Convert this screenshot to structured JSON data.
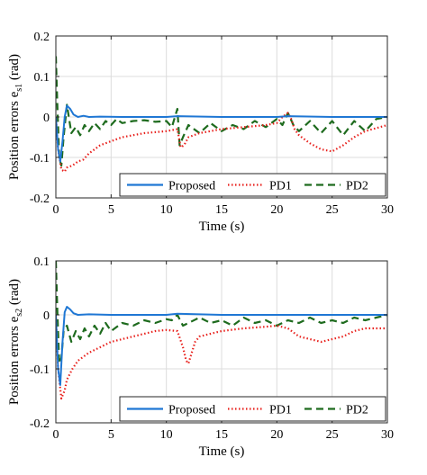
{
  "chart_data": [
    {
      "type": "line",
      "xlabel": "Time (s)",
      "ylabel": {
        "main": "Position errors e",
        "sub": "s1",
        "unit": "(rad)"
      },
      "xlim": [
        0,
        30
      ],
      "ylim": [
        -0.2,
        0.2
      ],
      "xticks": [
        0,
        5,
        10,
        15,
        20,
        25,
        30
      ],
      "yticks": [
        -0.2,
        -0.1,
        0,
        0.1,
        0.2
      ],
      "xtick_labels": [
        "0",
        "5",
        "10",
        "15",
        "20",
        "25",
        "30"
      ],
      "ytick_labels": [
        "-0.2",
        "-0.1",
        "0",
        "0.1",
        "0.2"
      ],
      "grid": true,
      "legend_position": "bottom-right",
      "series": [
        {
          "name": "Proposed",
          "color": "#1f77d4",
          "style": "solid",
          "x": [
            0,
            0.2,
            0.4,
            0.6,
            0.8,
            1.0,
            1.3,
            1.6,
            2.0,
            2.5,
            3.0,
            4.0,
            6.0,
            10.0,
            11.0,
            15.0,
            20.0,
            21.0,
            25.0,
            30.0
          ],
          "y": [
            0.0,
            -0.08,
            -0.11,
            -0.06,
            0.0,
            0.028,
            0.02,
            0.006,
            0.0,
            0.003,
            0.0,
            0.001,
            0.0,
            0.0,
            0.002,
            0.0,
            0.0,
            0.002,
            0.0,
            0.0
          ]
        },
        {
          "name": "PD1",
          "color": "#e8201c",
          "style": "dotted",
          "x": [
            0,
            0.2,
            0.5,
            0.8,
            1.0,
            1.5,
            2.0,
            2.5,
            3.0,
            4.0,
            5.0,
            6.0,
            8.0,
            10.0,
            11.0,
            11.3,
            11.6,
            12.0,
            13.0,
            15.0,
            17.0,
            19.0,
            20.0,
            20.5,
            21.0,
            21.3,
            21.6,
            22.0,
            23.0,
            24.0,
            25.0,
            26.0,
            27.0,
            28.0,
            30.0
          ],
          "y": [
            0.0,
            -0.08,
            -0.13,
            -0.135,
            -0.125,
            -0.12,
            -0.11,
            -0.105,
            -0.09,
            -0.07,
            -0.06,
            -0.05,
            -0.04,
            -0.035,
            -0.03,
            -0.075,
            -0.07,
            -0.05,
            -0.04,
            -0.03,
            -0.025,
            -0.02,
            -0.015,
            0.0,
            0.01,
            -0.005,
            -0.03,
            -0.045,
            -0.065,
            -0.08,
            -0.085,
            -0.07,
            -0.05,
            -0.035,
            -0.02
          ]
        },
        {
          "name": "PD2",
          "color": "#1e6b1e",
          "style": "dashed",
          "x": [
            0,
            0.15,
            0.3,
            0.5,
            0.7,
            1.0,
            1.4,
            1.8,
            2.2,
            2.6,
            3.0,
            3.5,
            4.0,
            4.5,
            5.0,
            5.5,
            6.0,
            7.0,
            8.0,
            9.0,
            10.0,
            10.5,
            11.0,
            11.2,
            11.5,
            12.0,
            13.0,
            14.0,
            15.0,
            16.0,
            17.0,
            18.0,
            19.0,
            20.0,
            20.5,
            21.0,
            21.5,
            22.0,
            23.0,
            24.0,
            25.0,
            26.0,
            27.0,
            28.0,
            29.0,
            30.0
          ],
          "y": [
            0.15,
            0.02,
            -0.1,
            -0.12,
            -0.05,
            0.03,
            -0.04,
            -0.025,
            -0.045,
            -0.02,
            -0.035,
            -0.015,
            -0.03,
            -0.01,
            -0.02,
            -0.005,
            -0.015,
            -0.01,
            -0.008,
            -0.012,
            -0.01,
            -0.025,
            0.02,
            -0.07,
            -0.05,
            -0.02,
            -0.04,
            -0.015,
            -0.035,
            -0.02,
            -0.03,
            -0.01,
            -0.025,
            -0.005,
            -0.02,
            0.01,
            -0.02,
            -0.035,
            -0.01,
            -0.04,
            -0.01,
            -0.045,
            -0.01,
            -0.035,
            -0.005,
            0.0
          ]
        }
      ]
    },
    {
      "type": "line",
      "xlabel": "Time (s)",
      "ylabel": {
        "main": "Position errors e",
        "sub": "s2",
        "unit": "(rad)"
      },
      "xlim": [
        0,
        30
      ],
      "ylim": [
        -0.2,
        0.1
      ],
      "xticks": [
        0,
        5,
        10,
        15,
        20,
        25,
        30
      ],
      "yticks": [
        -0.2,
        -0.1,
        0,
        0.1
      ],
      "xtick_labels": [
        "0",
        "5",
        "10",
        "15",
        "20",
        "25",
        "30"
      ],
      "ytick_labels": [
        "-0.2",
        "-0.1",
        "0",
        "0.1"
      ],
      "grid": true,
      "legend_position": "bottom-right",
      "series": [
        {
          "name": "Proposed",
          "color": "#1f77d4",
          "style": "solid",
          "x": [
            0,
            0.2,
            0.4,
            0.6,
            0.8,
            1.0,
            1.3,
            1.6,
            2.0,
            3.0,
            5.0,
            10.0,
            11.0,
            15.0,
            20.0,
            25.0,
            30.0
          ],
          "y": [
            0.0,
            -0.1,
            -0.13,
            -0.05,
            0.005,
            0.015,
            0.01,
            0.003,
            0.0,
            0.001,
            0.0,
            0.0,
            0.002,
            0.0,
            0.0,
            0.0,
            0.0
          ]
        },
        {
          "name": "PD1",
          "color": "#e8201c",
          "style": "dotted",
          "x": [
            0,
            0.2,
            0.5,
            0.8,
            1.0,
            1.5,
            2.0,
            3.0,
            4.0,
            5.0,
            6.0,
            7.0,
            8.0,
            9.0,
            10.0,
            11.0,
            11.5,
            11.8,
            12.0,
            12.3,
            12.6,
            13.0,
            14.0,
            15.0,
            17.0,
            19.0,
            20.0,
            21.0,
            22.0,
            23.0,
            24.0,
            25.0,
            26.0,
            27.0,
            28.0,
            30.0
          ],
          "y": [
            0.0,
            -0.1,
            -0.155,
            -0.14,
            -0.12,
            -0.1,
            -0.085,
            -0.07,
            -0.06,
            -0.05,
            -0.045,
            -0.04,
            -0.035,
            -0.03,
            -0.028,
            -0.03,
            -0.06,
            -0.085,
            -0.09,
            -0.07,
            -0.05,
            -0.04,
            -0.035,
            -0.03,
            -0.025,
            -0.022,
            -0.02,
            -0.025,
            -0.04,
            -0.045,
            -0.05,
            -0.045,
            -0.04,
            -0.03,
            -0.025,
            -0.025
          ]
        },
        {
          "name": "PD2",
          "color": "#1e6b1e",
          "style": "dashed",
          "x": [
            0,
            0.15,
            0.3,
            0.5,
            0.7,
            1.0,
            1.4,
            1.8,
            2.2,
            2.6,
            3.0,
            3.5,
            4.0,
            4.5,
            5.0,
            6.0,
            7.0,
            8.0,
            9.0,
            10.0,
            10.5,
            11.0,
            11.5,
            12.0,
            13.0,
            14.0,
            15.0,
            16.0,
            17.0,
            18.0,
            19.0,
            20.0,
            21.0,
            22.0,
            23.0,
            24.0,
            25.0,
            26.0,
            27.0,
            28.0,
            29.0,
            30.0
          ],
          "y": [
            0.1,
            0.0,
            -0.09,
            -0.08,
            -0.03,
            -0.02,
            -0.05,
            -0.03,
            -0.045,
            -0.025,
            -0.04,
            -0.02,
            -0.035,
            -0.015,
            -0.03,
            -0.015,
            -0.02,
            -0.01,
            -0.015,
            -0.008,
            -0.01,
            0.0,
            -0.02,
            -0.015,
            -0.005,
            -0.015,
            -0.01,
            -0.02,
            -0.005,
            -0.015,
            -0.01,
            -0.02,
            -0.01,
            -0.015,
            -0.005,
            -0.015,
            -0.01,
            -0.015,
            -0.005,
            -0.01,
            -0.005,
            0.0
          ]
        }
      ]
    }
  ]
}
